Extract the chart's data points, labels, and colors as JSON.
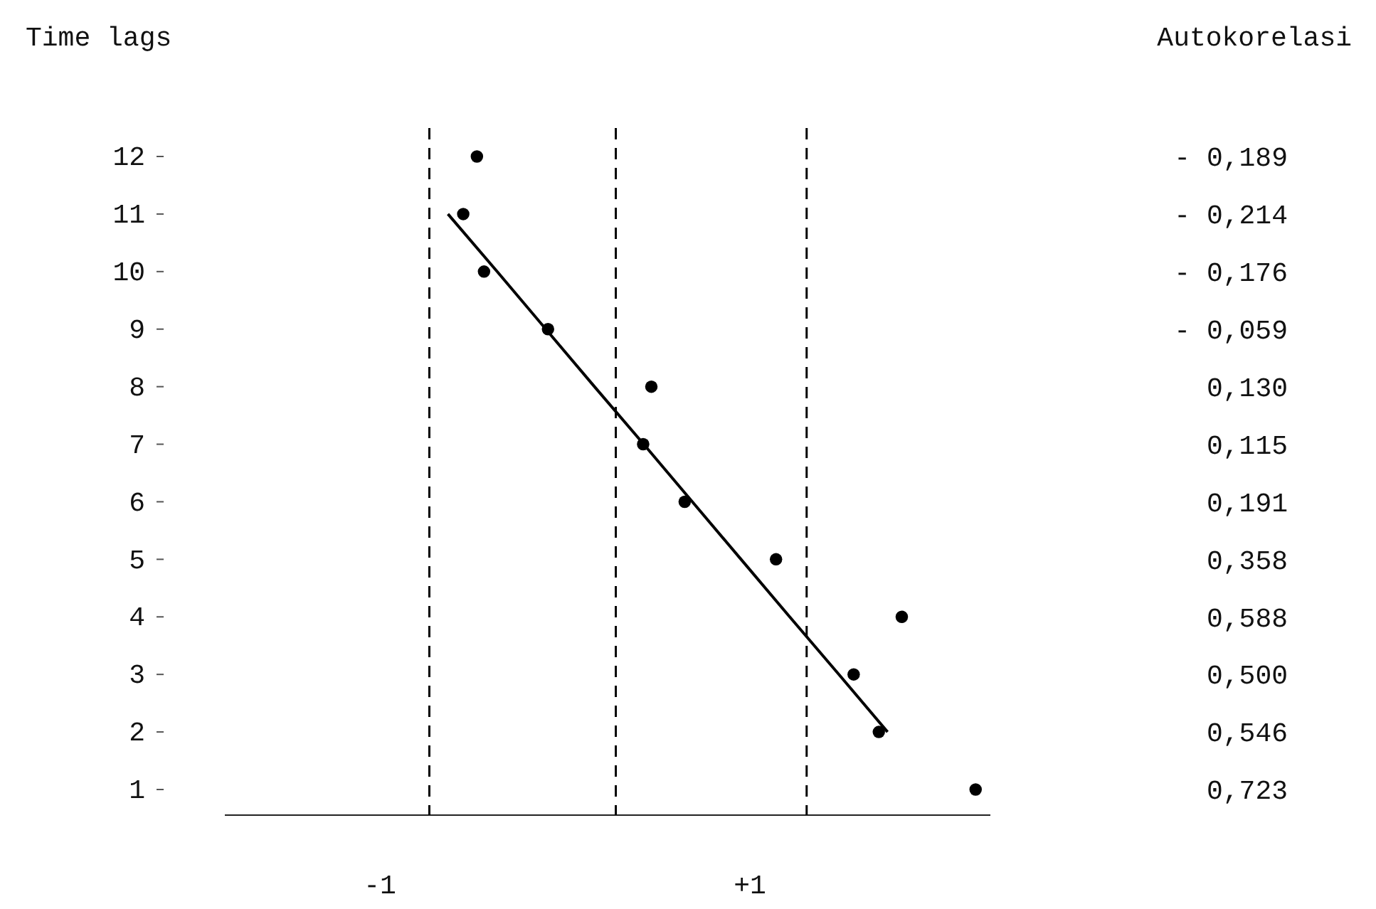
{
  "chart_data": {
    "type": "scatter",
    "orientation": "horizontal",
    "ylabel": "Time lags",
    "categories": [
      "12",
      "11",
      "10",
      "9",
      "8",
      "7",
      "6",
      "5",
      "4",
      "3",
      "2",
      "1"
    ],
    "xlim": [
      -0.65,
      0.75
    ],
    "tick_labels": "y",
    "grid": false,
    "annotations": [
      "Autokorelasi",
      "-1",
      "+1"
    ],
    "series": [
      {
        "color": "#000000",
        "marker": "circle",
        "values": [
          -0.189,
          -0.214,
          -0.176,
          -0.059,
          0.13,
          0.115,
          0.191,
          0.358,
          0.588,
          0.5,
          0.546,
          0.723
        ],
        "value_labels": [
          "- 0,189",
          "- 0,214",
          "- 0,176",
          "- 0,059",
          "0,130",
          "0,115",
          "0,191",
          "0,358",
          "0,588",
          "0,500",
          "0,546",
          "0,723"
        ]
      },
      {
        "type": "line",
        "color": "#000000",
        "marker": "none",
        "values": [
          null,
          -0.242,
          -0.152,
          -0.063,
          0.026,
          0.116,
          0.205,
          0.294,
          0.383,
          0.473,
          0.562,
          null
        ]
      }
    ],
    "ref_lines": [
      {
        "axis": "x",
        "value": -0.276,
        "line_style": "dashed",
        "color": "#000000"
      },
      {
        "axis": "x",
        "value": 0.065,
        "line_style": "dashed",
        "color": "#000000"
      },
      {
        "axis": "x",
        "value": 0.414,
        "line_style": "dashed",
        "color": "#000000"
      }
    ]
  }
}
